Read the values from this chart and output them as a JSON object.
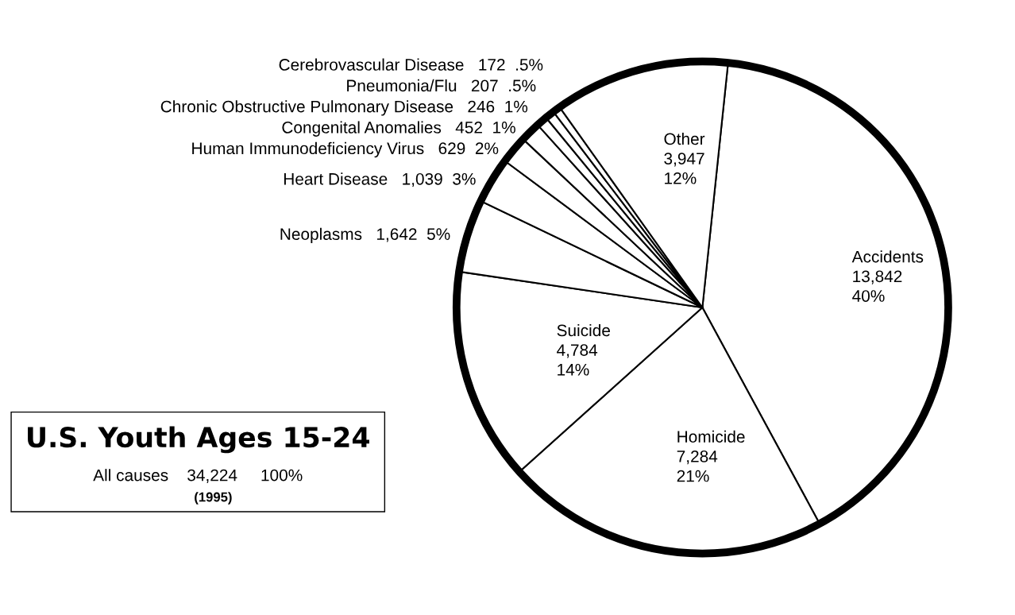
{
  "chart_data": {
    "type": "pie",
    "title": "U.S. Youth Ages 15-24",
    "categories": [
      "Accidents",
      "Homicide",
      "Suicide",
      "Neoplasms",
      "Heart Disease",
      "Human Immunodeficiency Virus",
      "Congenital Anomalies",
      "Chronic Obstructive Pulmonary Disease",
      "Pneumonia/Flu",
      "Cerebrovascular Disease",
      "Other"
    ],
    "values": [
      13842,
      7284,
      4784,
      1642,
      1039,
      629,
      452,
      246,
      207,
      172,
      3947
    ],
    "value_labels": [
      "13,842\n40%",
      "7,284\n21%",
      "4,784\n14%",
      "1,642\n5%",
      "1,039\n3%",
      "629\n2%",
      "452\n1%",
      "246\n1%",
      "207\n.5%",
      "172\n.5%",
      "3,947\n12%"
    ],
    "colors": [
      "#ffffff",
      "#ffffff",
      "#ffffff",
      "#ffffff",
      "#ffffff",
      "#ffffff",
      "#ffffff",
      "#ffffff",
      "#ffffff",
      "#ffffff",
      "#ffffff"
    ],
    "annotations": [
      "All causes    34,224     100%",
      "(1995)"
    ]
  }
}
